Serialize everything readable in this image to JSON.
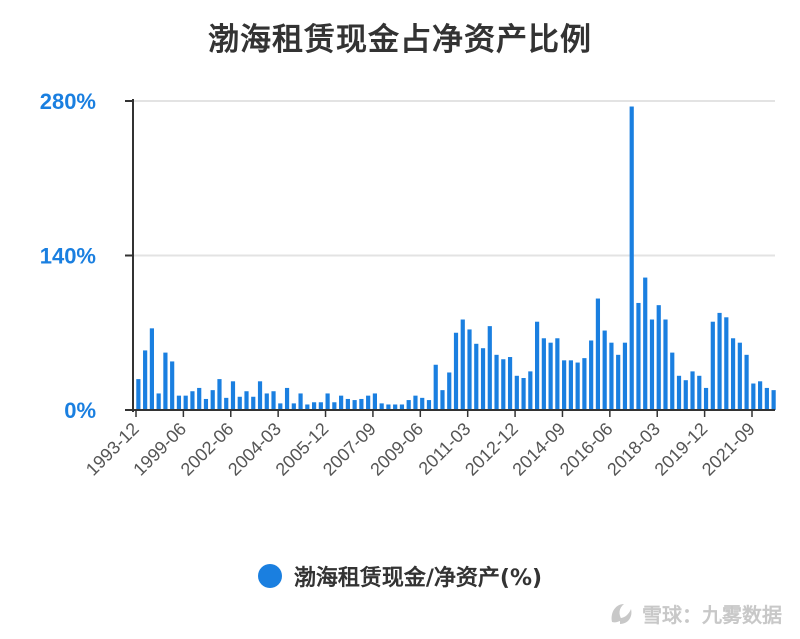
{
  "chart_data": {
    "type": "bar",
    "title": "渤海租赁现金占净资产比例",
    "legend": [
      "渤海租赁现金/净资产(%)"
    ],
    "legend_position": "bottom",
    "ylim": [
      0,
      280
    ],
    "yticks": [
      "0%",
      "140%",
      "280%"
    ],
    "ytick_values": [
      0,
      140,
      280
    ],
    "xtick_labels": [
      "1993-12",
      "1999-06",
      "2002-06",
      "2004-03",
      "2005-12",
      "2007-09",
      "2009-06",
      "2011-03",
      "2012-12",
      "2014-09",
      "2016-06",
      "2018-03",
      "2019-12",
      "2021-09"
    ],
    "grid": "horizontal",
    "color": "#1a7fe0",
    "series": [
      {
        "name": "渤海租赁现金/净资产(%)",
        "values": [
          28,
          54,
          74,
          15,
          52,
          44,
          13,
          13,
          17,
          20,
          10,
          18,
          28,
          11,
          26,
          12,
          17,
          12,
          26,
          15,
          17,
          6,
          20,
          6,
          15,
          5,
          7,
          7,
          15,
          7,
          13,
          10,
          9,
          10,
          13,
          15,
          6,
          5,
          5,
          5,
          9,
          13,
          11,
          9,
          41,
          18,
          34,
          70,
          82,
          73,
          60,
          56,
          76,
          50,
          46,
          48,
          31,
          29,
          35,
          80,
          65,
          61,
          65,
          45,
          45,
          43,
          47,
          63,
          101,
          72,
          61,
          50,
          61,
          275,
          97,
          120,
          82,
          95,
          82,
          52,
          31,
          27,
          35,
          31,
          20,
          80,
          88,
          84,
          65,
          61,
          50,
          24,
          26,
          20,
          18
        ]
      }
    ]
  },
  "watermark": {
    "logo_icon": "snowball-logo-icon",
    "text": "雪球：九雾数据"
  }
}
